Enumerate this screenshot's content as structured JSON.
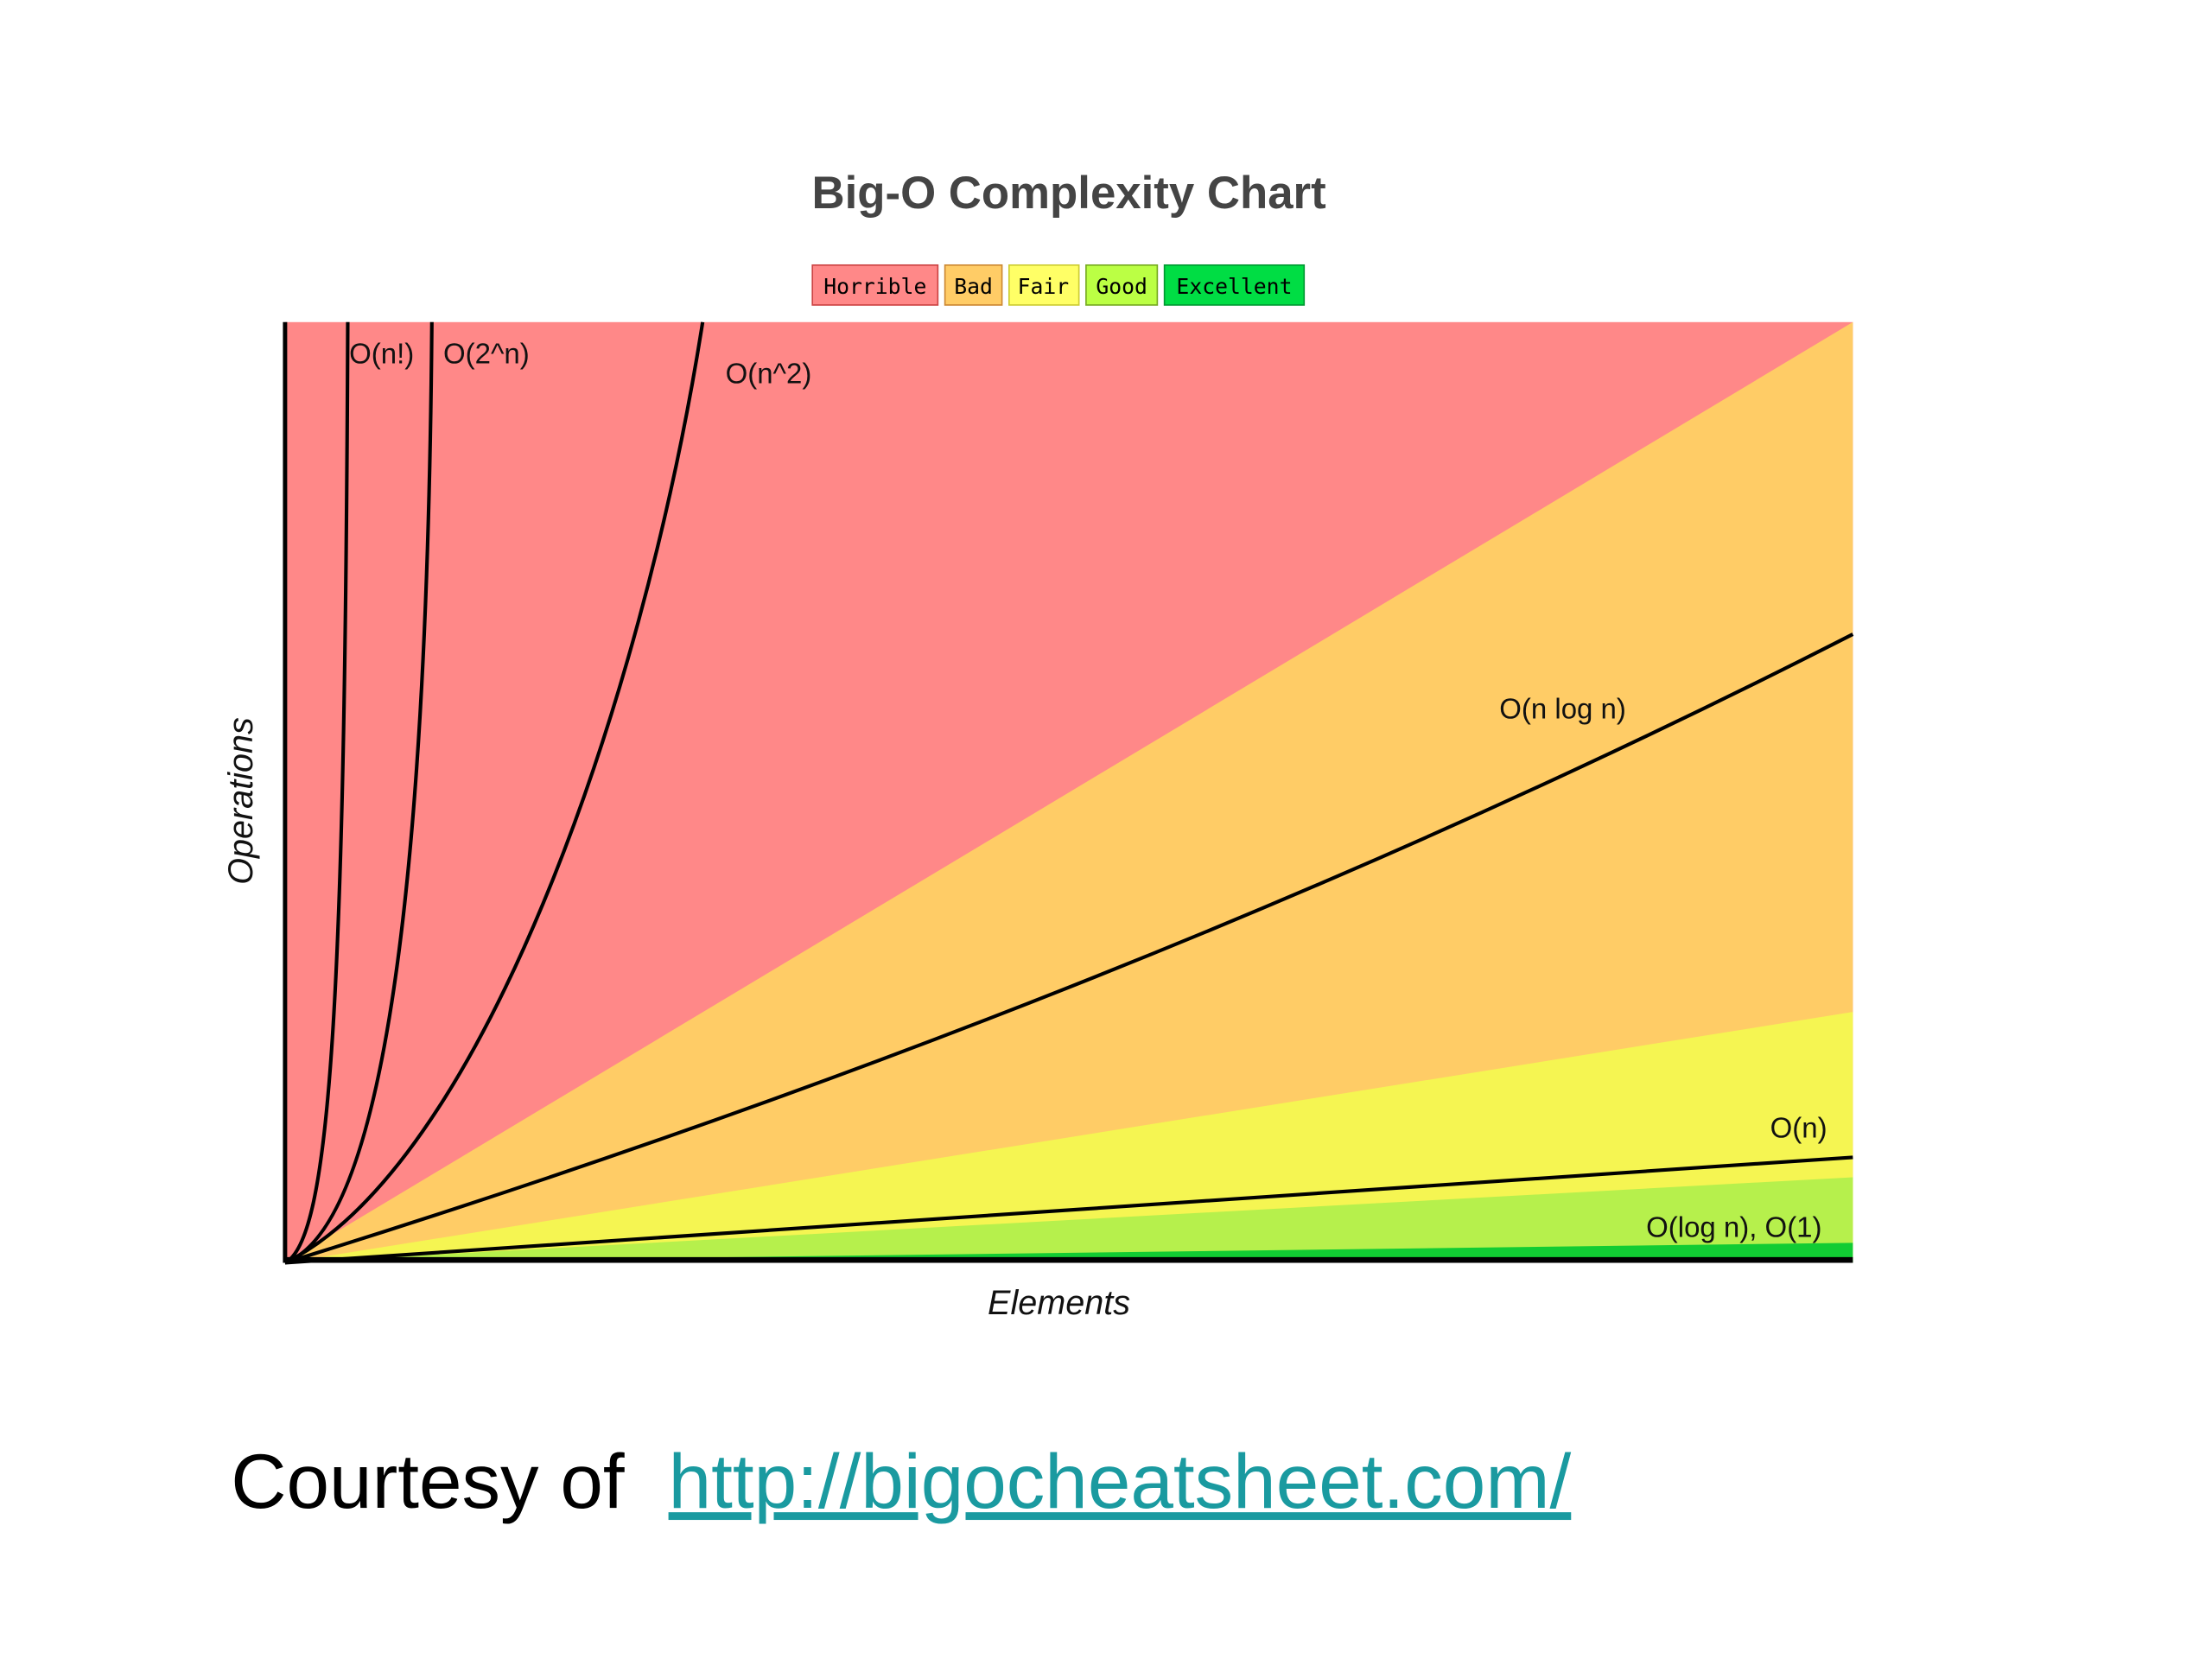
{
  "slide": {
    "chart": {
      "title": "Big-O Complexity Chart",
      "legend": [
        "Horrible",
        "Bad",
        "Fair",
        "Good",
        "Excellent"
      ],
      "curve_labels": [
        "O(n!)",
        "O(2^n)",
        "O(n^2)",
        "O(n log n)",
        "O(n)",
        "O(log n), O(1)"
      ],
      "x_label": "Elements",
      "y_label": "Operations"
    },
    "caption": {
      "text": "Courtesy of",
      "link": "http://bigocheatsheet.com/"
    }
  }
}
